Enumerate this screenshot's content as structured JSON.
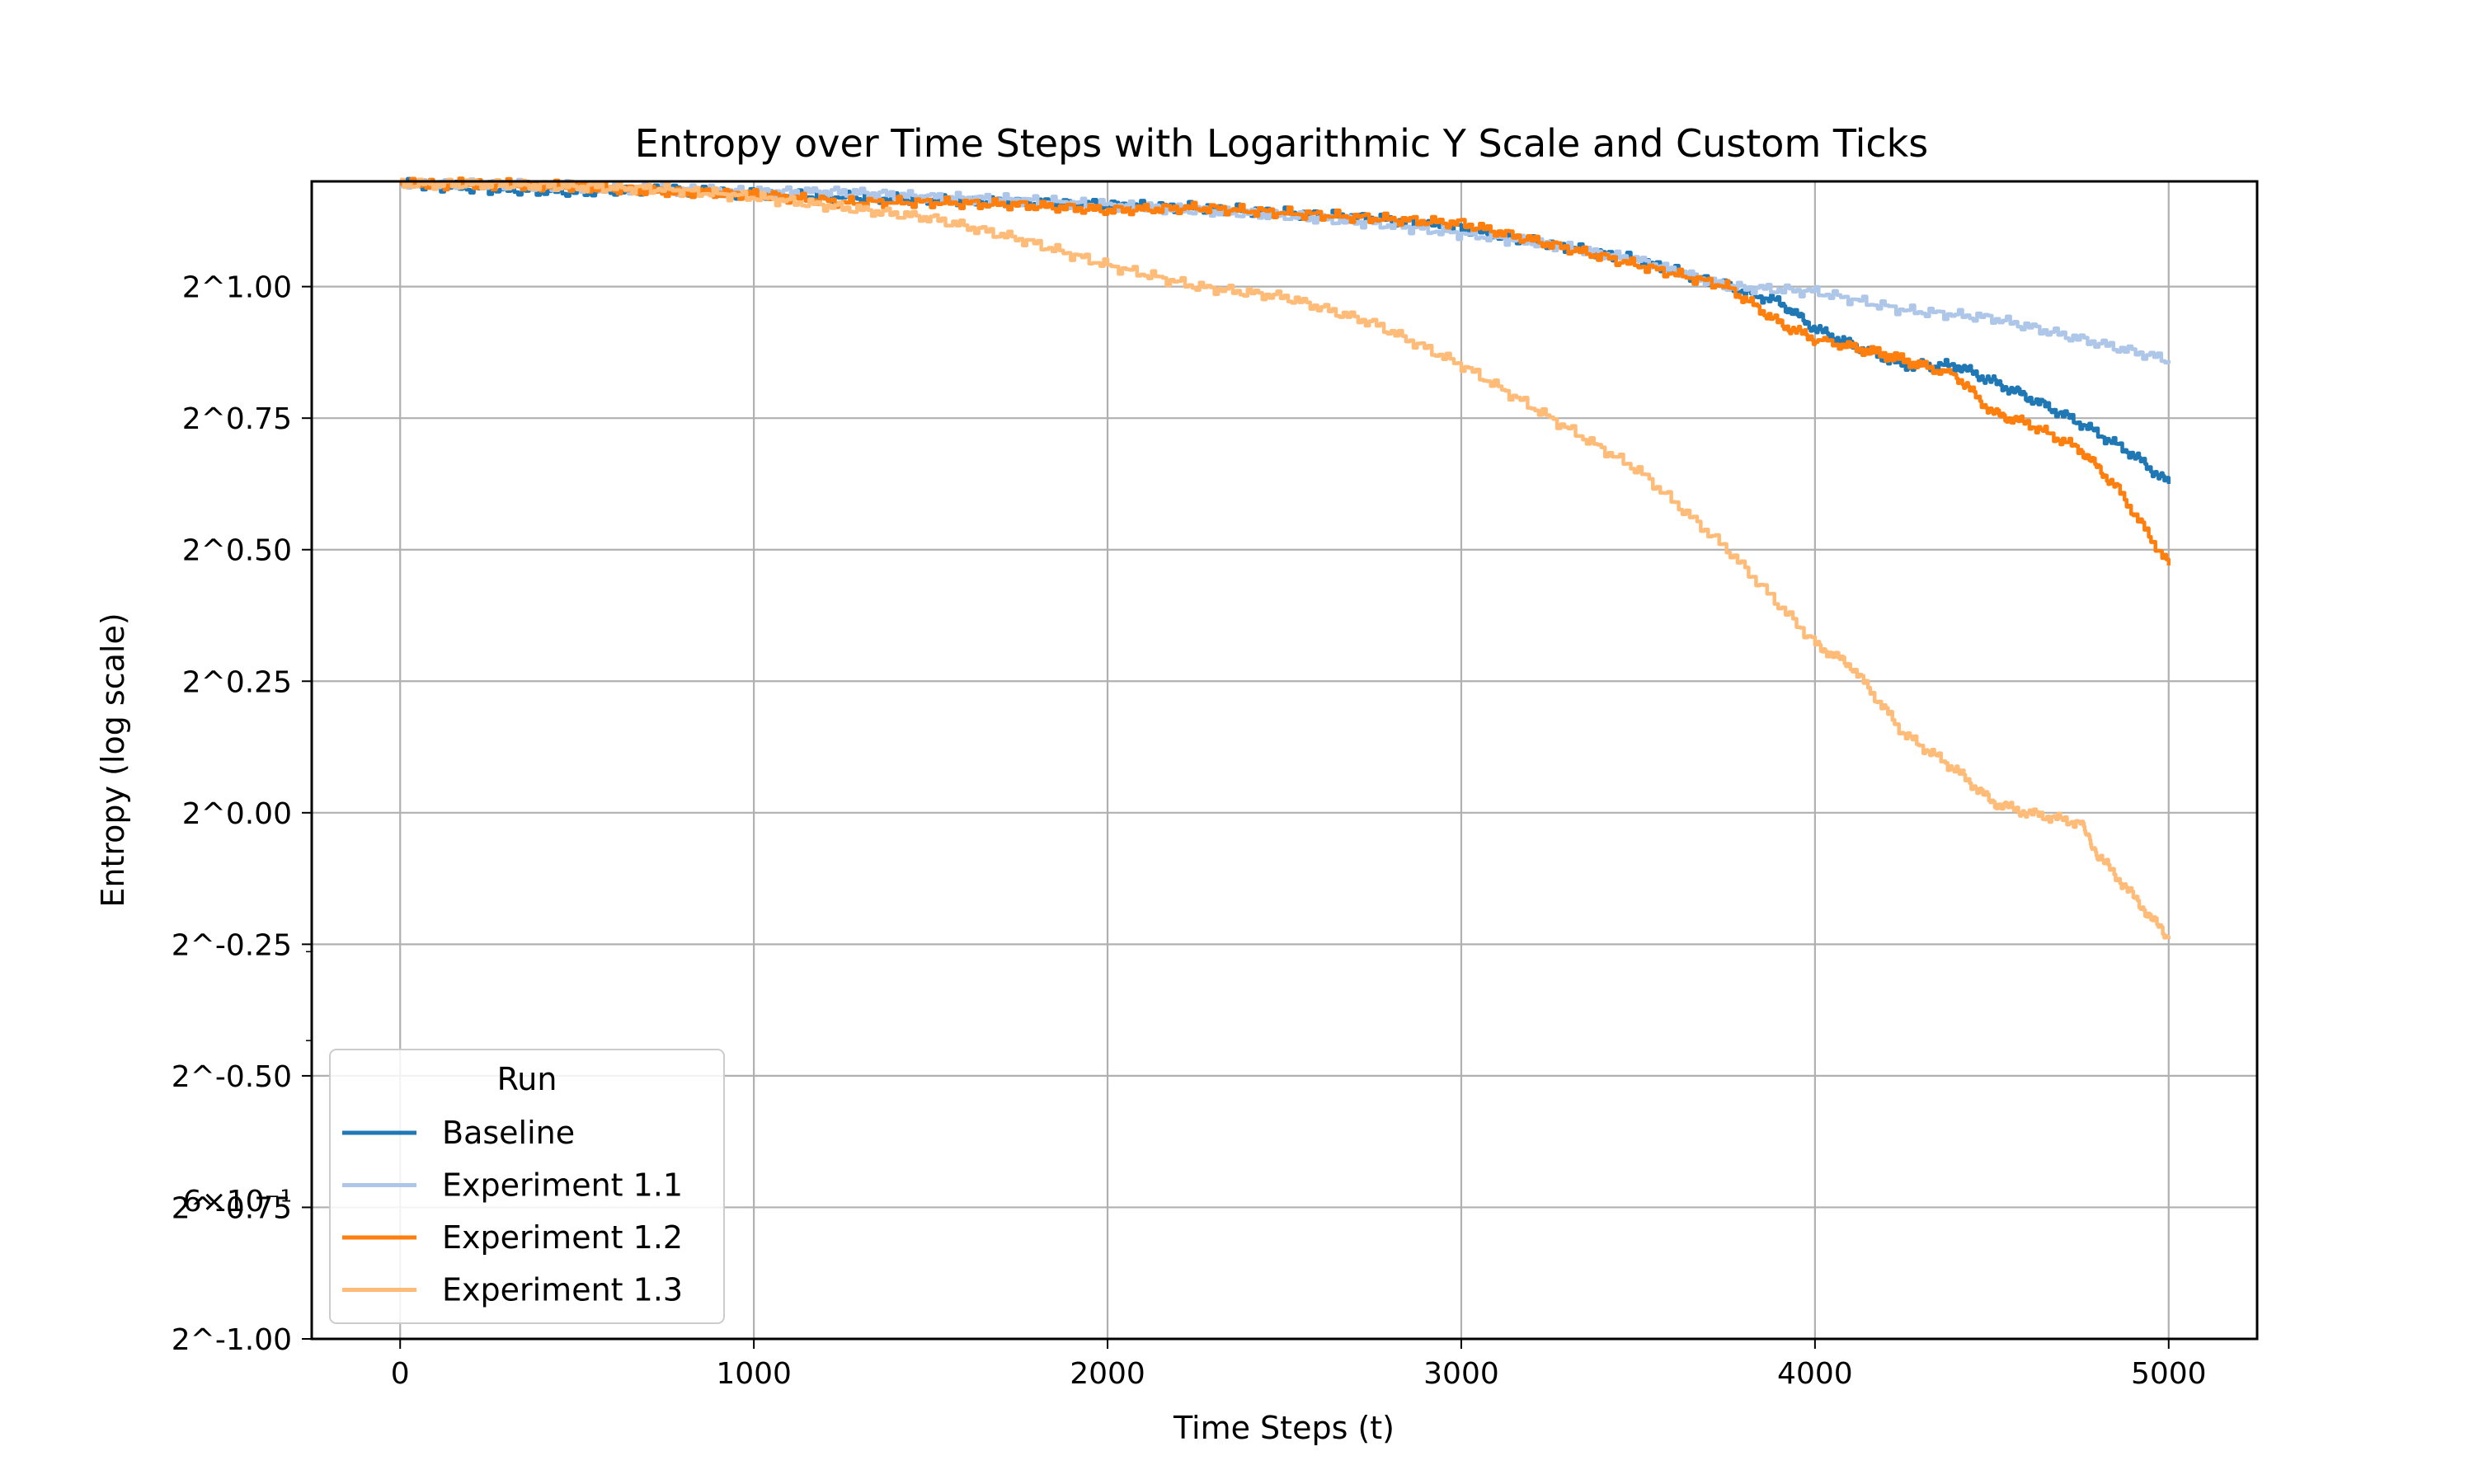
{
  "chart_data": {
    "type": "line",
    "title": "Entropy over Time Steps with Logarithmic Y Scale and Custom Ticks",
    "xlabel": "Time Steps (t)",
    "ylabel": "Entropy (log scale)",
    "xlim": [
      -250,
      5250
    ],
    "ylim_exponent": [
      -1.0,
      1.2
    ],
    "y_scale": "log2",
    "x_ticks": [
      0,
      1000,
      2000,
      3000,
      4000,
      5000
    ],
    "y_ticks": [
      {
        "exp": 1.0,
        "label": "2^1.00"
      },
      {
        "exp": 0.75,
        "label": "2^0.75"
      },
      {
        "exp": 0.5,
        "label": "2^0.50"
      },
      {
        "exp": 0.25,
        "label": "2^0.25"
      },
      {
        "exp": 0.0,
        "label": "2^0.00"
      },
      {
        "exp": -0.25,
        "label": "2^-0.25"
      },
      {
        "exp": -0.5,
        "label": "2^-0.50"
      },
      {
        "exp": -0.75,
        "label": "2^-0.75"
      },
      {
        "exp": -1.0,
        "label": "2^-1.00"
      }
    ],
    "overlap_label": {
      "exp": -0.737,
      "label": "6×10⁻¹"
    },
    "grid": true,
    "legend": {
      "title": "Run",
      "placement": "lower-left"
    },
    "series": [
      {
        "name": "Baseline",
        "color": "#1f77b4",
        "x": [
          0,
          250,
          500,
          750,
          1000,
          1250,
          1500,
          1750,
          2000,
          2250,
          2500,
          2750,
          3000,
          3250,
          3500,
          3750,
          3900,
          4000,
          4100,
          4250,
          4400,
          4500,
          4600,
          4750,
          4900,
          5000
        ],
        "y_exp": [
          1.195,
          1.185,
          1.18,
          1.185,
          1.175,
          1.17,
          1.165,
          1.16,
          1.155,
          1.15,
          1.14,
          1.13,
          1.11,
          1.08,
          1.05,
          1.0,
          0.97,
          0.92,
          0.89,
          0.85,
          0.85,
          0.82,
          0.79,
          0.74,
          0.68,
          0.625
        ]
      },
      {
        "name": "Experiment 1.1",
        "color": "#aec7e8",
        "x": [
          0,
          250,
          500,
          750,
          1000,
          1250,
          1500,
          1750,
          2000,
          2250,
          2500,
          2750,
          3000,
          3250,
          3500,
          3750,
          4000,
          4250,
          4500,
          4750,
          5000
        ],
        "y_exp": [
          1.195,
          1.195,
          1.19,
          1.185,
          1.18,
          1.18,
          1.17,
          1.165,
          1.155,
          1.145,
          1.135,
          1.12,
          1.1,
          1.08,
          1.05,
          1.0,
          0.99,
          0.955,
          0.94,
          0.9,
          0.86
        ]
      },
      {
        "name": "Experiment 1.2",
        "color": "#ff7f0e",
        "x": [
          0,
          250,
          500,
          750,
          1000,
          1250,
          1500,
          1750,
          2000,
          2250,
          2500,
          2750,
          3000,
          3250,
          3500,
          3750,
          3900,
          4000,
          4200,
          4400,
          4500,
          4600,
          4750,
          4850,
          5000
        ],
        "y_exp": [
          1.195,
          1.195,
          1.19,
          1.18,
          1.175,
          1.16,
          1.16,
          1.155,
          1.145,
          1.15,
          1.14,
          1.13,
          1.12,
          1.08,
          1.04,
          1.0,
          0.93,
          0.9,
          0.87,
          0.83,
          0.76,
          0.74,
          0.69,
          0.62,
          0.47
        ]
      },
      {
        "name": "Experiment 1.3",
        "color": "#ffbb78",
        "x": [
          0,
          250,
          500,
          750,
          1000,
          1250,
          1500,
          1750,
          2000,
          2250,
          2500,
          2750,
          3000,
          3250,
          3500,
          3750,
          4000,
          4100,
          4250,
          4400,
          4500,
          4600,
          4750,
          4800,
          4900,
          5000
        ],
        "y_exp": [
          1.195,
          1.195,
          1.19,
          1.185,
          1.17,
          1.15,
          1.13,
          1.09,
          1.04,
          1.0,
          0.98,
          0.93,
          0.85,
          0.75,
          0.65,
          0.5,
          0.32,
          0.28,
          0.15,
          0.08,
          0.02,
          0.0,
          -0.02,
          -0.08,
          -0.16,
          -0.24
        ]
      }
    ]
  }
}
